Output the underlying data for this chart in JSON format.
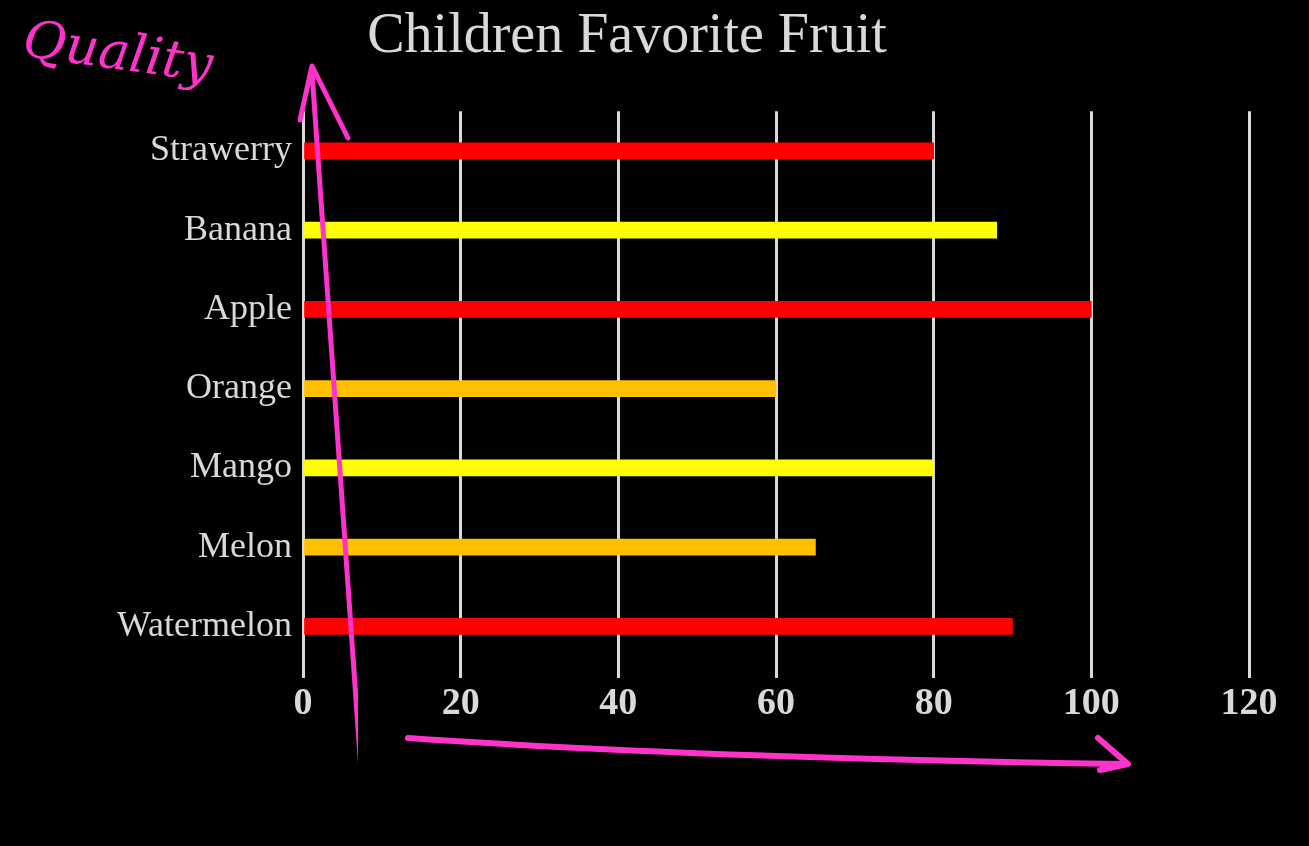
{
  "chart_data": {
    "type": "bar",
    "orientation": "horizontal",
    "title": "Children Favorite Fruit",
    "categories": [
      "Strawerry",
      "Banana",
      "Apple",
      "Orange",
      "Mango",
      "Melon",
      "Watermelon"
    ],
    "values": [
      80,
      88,
      100,
      60,
      80,
      65,
      90
    ],
    "colors": [
      "#ff0000",
      "#ffff00",
      "#ff0000",
      "#ffc000",
      "#ffff00",
      "#ffc000",
      "#ff0000"
    ],
    "xlim": [
      0,
      120
    ],
    "xticks": [
      0,
      20,
      40,
      60,
      80,
      100,
      120
    ],
    "grid": "x",
    "annotations": [
      "Quality"
    ]
  }
}
